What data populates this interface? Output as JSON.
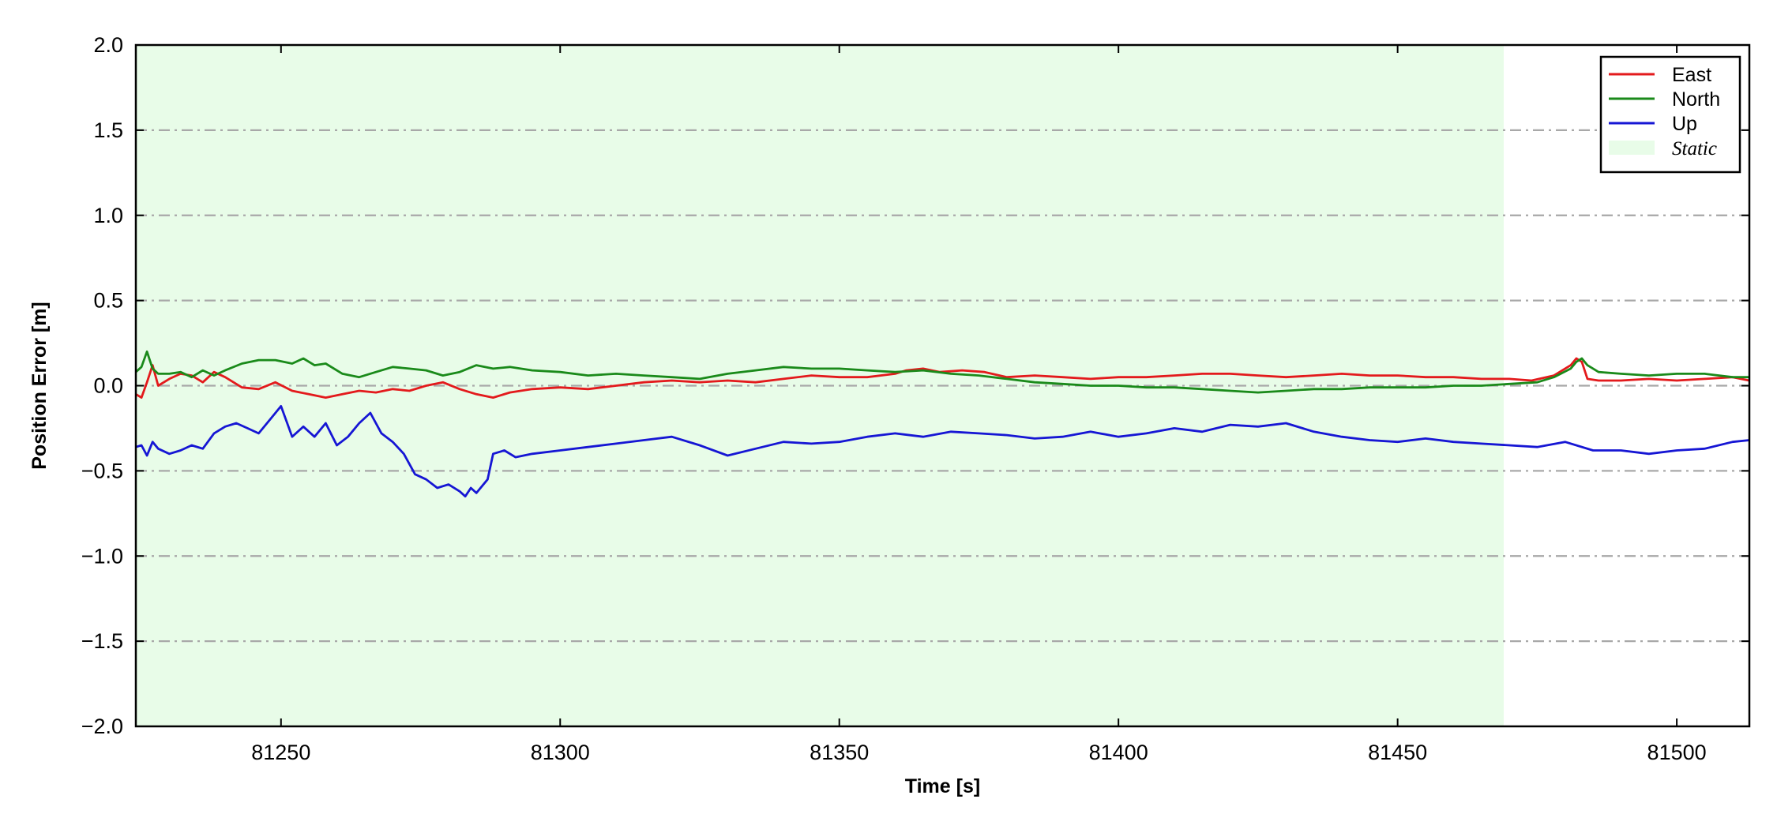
{
  "chart_data": {
    "type": "line",
    "title": "",
    "xlabel": "Time [s]",
    "ylabel": "Position Error [m]",
    "xlim": [
      81224,
      81513
    ],
    "ylim": [
      -2.0,
      2.0
    ],
    "xticks": [
      81250,
      81300,
      81350,
      81400,
      81450,
      81500
    ],
    "xtick_labels": [
      "81250",
      "81300",
      "81350",
      "81400",
      "81450",
      "81500"
    ],
    "yticks": [
      2.0,
      1.5,
      1.0,
      0.5,
      0.0,
      -0.5,
      -1.0,
      -1.5,
      -2.0
    ],
    "ytick_labels": [
      "2.0",
      "1.5",
      "1.0",
      "0.5",
      "0.0",
      "−0.5",
      "−1.0",
      "−1.5",
      "−2.0"
    ],
    "grid": "horizontal dash-dot",
    "legend_position": "top-right",
    "shaded_region": {
      "label": "Static",
      "x_start": 81224,
      "x_end": 81469,
      "color": "#e8fce8"
    },
    "series": [
      {
        "name": "East",
        "color": "#e31a1c",
        "x": [
          81224,
          81225,
          81226,
          81227,
          81228,
          81230,
          81232,
          81234,
          81236,
          81238,
          81240,
          81243,
          81246,
          81249,
          81252,
          81255,
          81258,
          81261,
          81264,
          81267,
          81270,
          81273,
          81276,
          81279,
          81282,
          81285,
          81288,
          81291,
          81295,
          81300,
          81305,
          81310,
          81315,
          81320,
          81325,
          81330,
          81335,
          81340,
          81345,
          81350,
          81355,
          81360,
          81362,
          81365,
          81368,
          81372,
          81376,
          81380,
          81385,
          81390,
          81395,
          81400,
          81405,
          81410,
          81415,
          81420,
          81425,
          81430,
          81435,
          81440,
          81445,
          81450,
          81455,
          81460,
          81465,
          81470,
          81474,
          81478,
          81481,
          81482,
          81483,
          81484,
          81486,
          81490,
          81495,
          81500,
          81505,
          81510,
          81513
        ],
        "y": [
          -0.05,
          -0.07,
          0.02,
          0.12,
          0.0,
          0.04,
          0.07,
          0.06,
          0.02,
          0.08,
          0.05,
          -0.01,
          -0.02,
          0.02,
          -0.03,
          -0.05,
          -0.07,
          -0.05,
          -0.03,
          -0.04,
          -0.02,
          -0.03,
          0.0,
          0.02,
          -0.02,
          -0.05,
          -0.07,
          -0.04,
          -0.02,
          -0.01,
          -0.02,
          0.0,
          0.02,
          0.03,
          0.02,
          0.03,
          0.02,
          0.04,
          0.06,
          0.05,
          0.05,
          0.07,
          0.09,
          0.1,
          0.08,
          0.09,
          0.08,
          0.05,
          0.06,
          0.05,
          0.04,
          0.05,
          0.05,
          0.06,
          0.07,
          0.07,
          0.06,
          0.05,
          0.06,
          0.07,
          0.06,
          0.06,
          0.05,
          0.05,
          0.04,
          0.04,
          0.03,
          0.06,
          0.12,
          0.16,
          0.14,
          0.04,
          0.03,
          0.03,
          0.04,
          0.03,
          0.04,
          0.05,
          0.03
        ]
      },
      {
        "name": "North",
        "color": "#1a8a1a",
        "x": [
          81224,
          81225,
          81226,
          81227,
          81228,
          81230,
          81232,
          81234,
          81236,
          81238,
          81240,
          81243,
          81246,
          81249,
          81252,
          81254,
          81256,
          81258,
          81261,
          81264,
          81267,
          81270,
          81273,
          81276,
          81279,
          81282,
          81285,
          81288,
          81291,
          81295,
          81300,
          81305,
          81310,
          81315,
          81320,
          81325,
          81330,
          81335,
          81340,
          81345,
          81350,
          81355,
          81360,
          81365,
          81370,
          81375,
          81380,
          81385,
          81390,
          81395,
          81400,
          81405,
          81410,
          81415,
          81420,
          81425,
          81430,
          81435,
          81440,
          81445,
          81450,
          81455,
          81460,
          81465,
          81470,
          81475,
          81478,
          81481,
          81482,
          81483,
          81484,
          81486,
          81490,
          81495,
          81500,
          81505,
          81510,
          81513
        ],
        "y": [
          0.08,
          0.11,
          0.2,
          0.1,
          0.07,
          0.07,
          0.08,
          0.05,
          0.09,
          0.06,
          0.09,
          0.13,
          0.15,
          0.15,
          0.13,
          0.16,
          0.12,
          0.13,
          0.07,
          0.05,
          0.08,
          0.11,
          0.1,
          0.09,
          0.06,
          0.08,
          0.12,
          0.1,
          0.11,
          0.09,
          0.08,
          0.06,
          0.07,
          0.06,
          0.05,
          0.04,
          0.07,
          0.09,
          0.11,
          0.1,
          0.1,
          0.09,
          0.08,
          0.09,
          0.07,
          0.06,
          0.04,
          0.02,
          0.01,
          0.0,
          0.0,
          -0.01,
          -0.01,
          -0.02,
          -0.03,
          -0.04,
          -0.03,
          -0.02,
          -0.02,
          -0.01,
          -0.01,
          -0.01,
          0.0,
          0.0,
          0.01,
          0.02,
          0.05,
          0.1,
          0.14,
          0.16,
          0.12,
          0.08,
          0.07,
          0.06,
          0.07,
          0.07,
          0.05,
          0.05
        ]
      },
      {
        "name": "Up",
        "color": "#1616d4",
        "x": [
          81224,
          81225,
          81226,
          81227,
          81228,
          81230,
          81232,
          81234,
          81236,
          81238,
          81240,
          81242,
          81244,
          81246,
          81248,
          81250,
          81252,
          81254,
          81256,
          81258,
          81260,
          81262,
          81264,
          81266,
          81268,
          81270,
          81272,
          81274,
          81276,
          81278,
          81280,
          81282,
          81283,
          81284,
          81285,
          81287,
          81288,
          81290,
          81292,
          81295,
          81300,
          81305,
          81310,
          81315,
          81320,
          81325,
          81330,
          81335,
          81340,
          81345,
          81350,
          81355,
          81360,
          81365,
          81370,
          81375,
          81380,
          81385,
          81390,
          81395,
          81400,
          81405,
          81410,
          81415,
          81420,
          81425,
          81430,
          81435,
          81440,
          81445,
          81450,
          81455,
          81460,
          81465,
          81470,
          81475,
          81480,
          81485,
          81490,
          81495,
          81500,
          81505,
          81510,
          81513
        ],
        "y": [
          -0.36,
          -0.35,
          -0.41,
          -0.33,
          -0.37,
          -0.4,
          -0.38,
          -0.35,
          -0.37,
          -0.28,
          -0.24,
          -0.22,
          -0.25,
          -0.28,
          -0.2,
          -0.12,
          -0.3,
          -0.24,
          -0.3,
          -0.22,
          -0.35,
          -0.3,
          -0.22,
          -0.16,
          -0.28,
          -0.33,
          -0.4,
          -0.52,
          -0.55,
          -0.6,
          -0.58,
          -0.62,
          -0.65,
          -0.6,
          -0.63,
          -0.55,
          -0.4,
          -0.38,
          -0.42,
          -0.4,
          -0.38,
          -0.36,
          -0.34,
          -0.32,
          -0.3,
          -0.35,
          -0.41,
          -0.37,
          -0.33,
          -0.34,
          -0.33,
          -0.3,
          -0.28,
          -0.3,
          -0.27,
          -0.28,
          -0.29,
          -0.31,
          -0.3,
          -0.27,
          -0.3,
          -0.28,
          -0.25,
          -0.27,
          -0.23,
          -0.24,
          -0.22,
          -0.27,
          -0.3,
          -0.32,
          -0.33,
          -0.31,
          -0.33,
          -0.34,
          -0.35,
          -0.36,
          -0.33,
          -0.38,
          -0.38,
          -0.4,
          -0.38,
          -0.37,
          -0.33,
          -0.32
        ]
      }
    ]
  }
}
